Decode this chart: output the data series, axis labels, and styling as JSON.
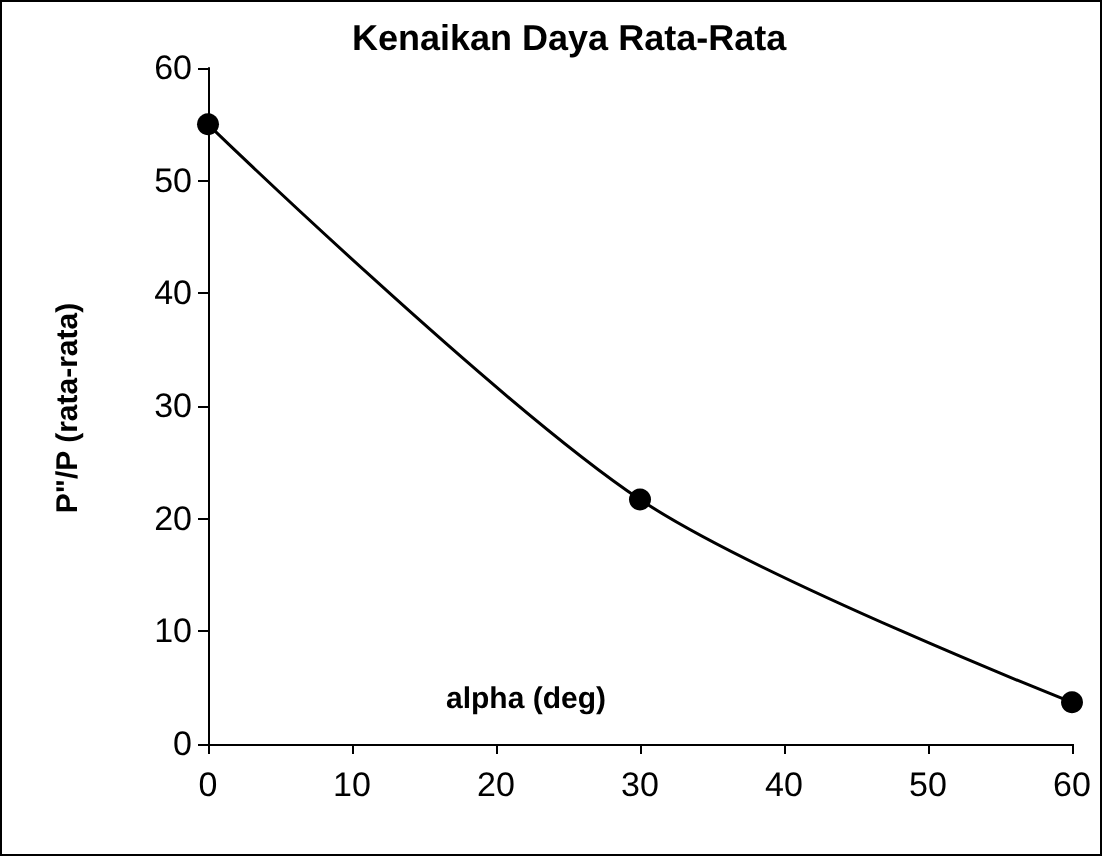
{
  "chart_data": {
    "type": "line",
    "title": "Kenaikan Daya Rata-Rata",
    "xlabel": "alpha (deg)",
    "ylabel": "P\"/P (rata-rata)",
    "x": [
      0,
      30,
      60
    ],
    "series": [
      {
        "color": "#000000",
        "values": [
          55,
          21.7,
          3.7
        ]
      }
    ],
    "xlim": [
      0,
      60
    ],
    "xticks": [
      0,
      10,
      20,
      30,
      40,
      50,
      60
    ],
    "ylim": [
      0,
      60
    ],
    "yticks": [
      0,
      10,
      20,
      30,
      40,
      50,
      60
    ],
    "grid": false,
    "marker": "circle",
    "line_style": "solid"
  }
}
